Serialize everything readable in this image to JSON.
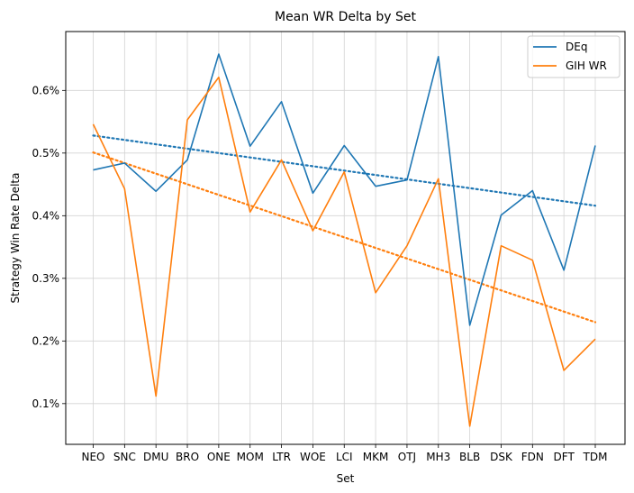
{
  "chart_data": {
    "type": "line",
    "title": "Mean WR Delta by Set",
    "xlabel": "Set",
    "ylabel": "Strategy Win Rate Delta",
    "categories": [
      "NEO",
      "SNC",
      "DMU",
      "BRO",
      "ONE",
      "MOM",
      "LTR",
      "WOE",
      "LCI",
      "MKM",
      "OTJ",
      "MH3",
      "BLB",
      "DSK",
      "FDN",
      "DFT",
      "TDM"
    ],
    "ylim": [
      0.00035,
      0.00694
    ],
    "yticks": [
      0.001,
      0.002,
      0.003,
      0.004,
      0.005,
      0.006
    ],
    "ytick_labels": [
      "0.1%",
      "0.2%",
      "0.3%",
      "0.4%",
      "0.5%",
      "0.6%"
    ],
    "grid": true,
    "legend_position": "top-right",
    "series": [
      {
        "name": "DEq",
        "color": "#1f77b4",
        "values": [
          0.00473,
          0.00484,
          0.00439,
          0.00489,
          0.00658,
          0.00511,
          0.00582,
          0.00436,
          0.00512,
          0.00447,
          0.00457,
          0.00654,
          0.00225,
          0.00401,
          0.0044,
          0.00313,
          0.00512
        ],
        "trend": [
          0.00528,
          0.00416
        ]
      },
      {
        "name": "GIH WR",
        "color": "#ff7f0e",
        "values": [
          0.00546,
          0.00443,
          0.00112,
          0.00553,
          0.00621,
          0.00406,
          0.00489,
          0.00376,
          0.0047,
          0.00277,
          0.00352,
          0.00459,
          0.00064,
          0.00352,
          0.00329,
          0.00153,
          0.00203
        ],
        "trend": [
          0.00501,
          0.0023
        ]
      }
    ]
  }
}
